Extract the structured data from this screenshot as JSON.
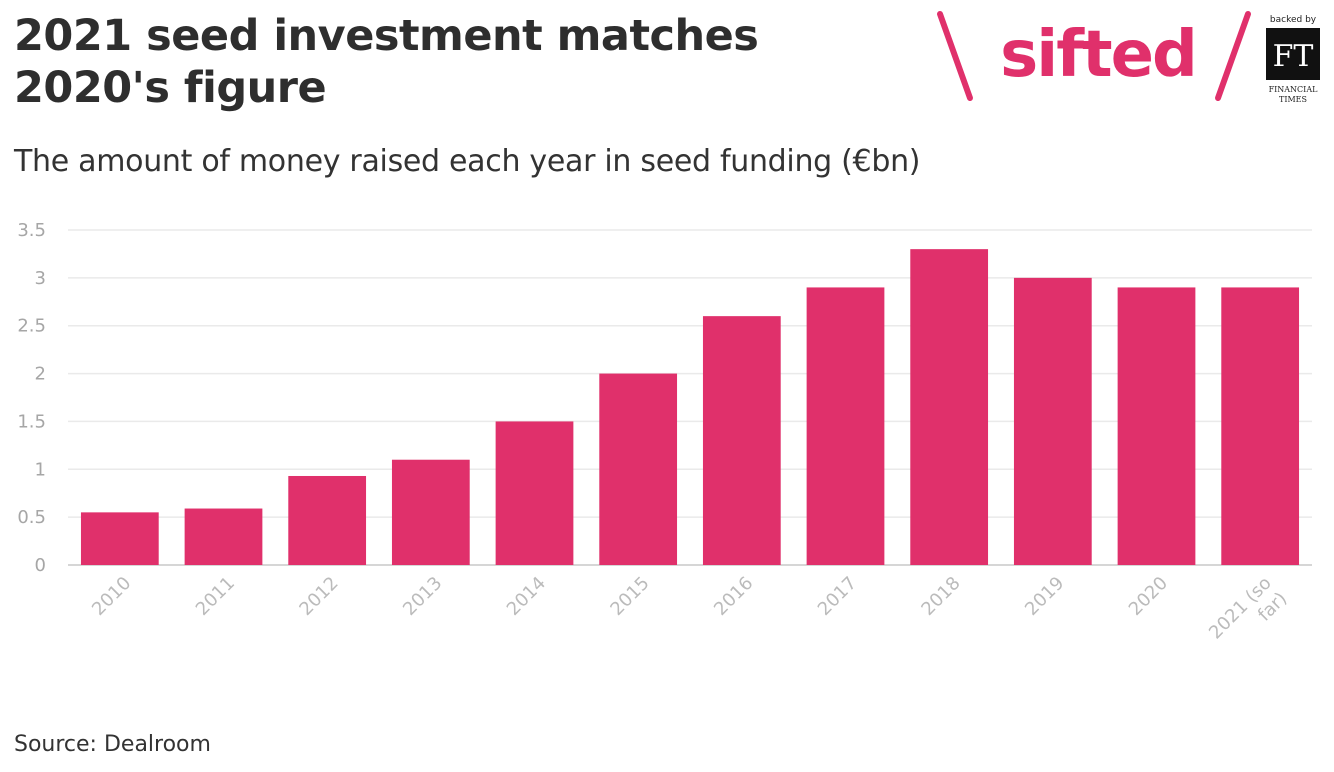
{
  "header": {
    "title": "2021 seed investment matches 2020's figure",
    "subtitle": "The amount of money raised each year in seed funding (€bn)"
  },
  "footer": {
    "source": "Source: Dealroom"
  },
  "brand": {
    "logo": "sifted",
    "backed_by": "backed by",
    "ft_mark": "FT",
    "ft_name_line1": "FINANCIAL",
    "ft_name_line2": "TIMES",
    "accent_color": "#e0306b"
  },
  "chart_data": {
    "type": "bar",
    "categories": [
      "2010",
      "2011",
      "2012",
      "2013",
      "2014",
      "2015",
      "2016",
      "2017",
      "2018",
      "2019",
      "2020",
      "2021 (so far)"
    ],
    "values": [
      0.55,
      0.59,
      0.93,
      1.1,
      1.5,
      2.0,
      2.6,
      2.9,
      3.3,
      3.0,
      2.9,
      2.9
    ],
    "title": "2021 seed investment matches 2020's figure",
    "xlabel": "",
    "ylabel": "",
    "ylim": [
      0,
      3.5
    ],
    "yticks": [
      "0",
      "0.5",
      "1",
      "1.5",
      "2",
      "2.5",
      "3",
      "3.5"
    ],
    "grid": true,
    "bar_color": "#e0306b"
  }
}
